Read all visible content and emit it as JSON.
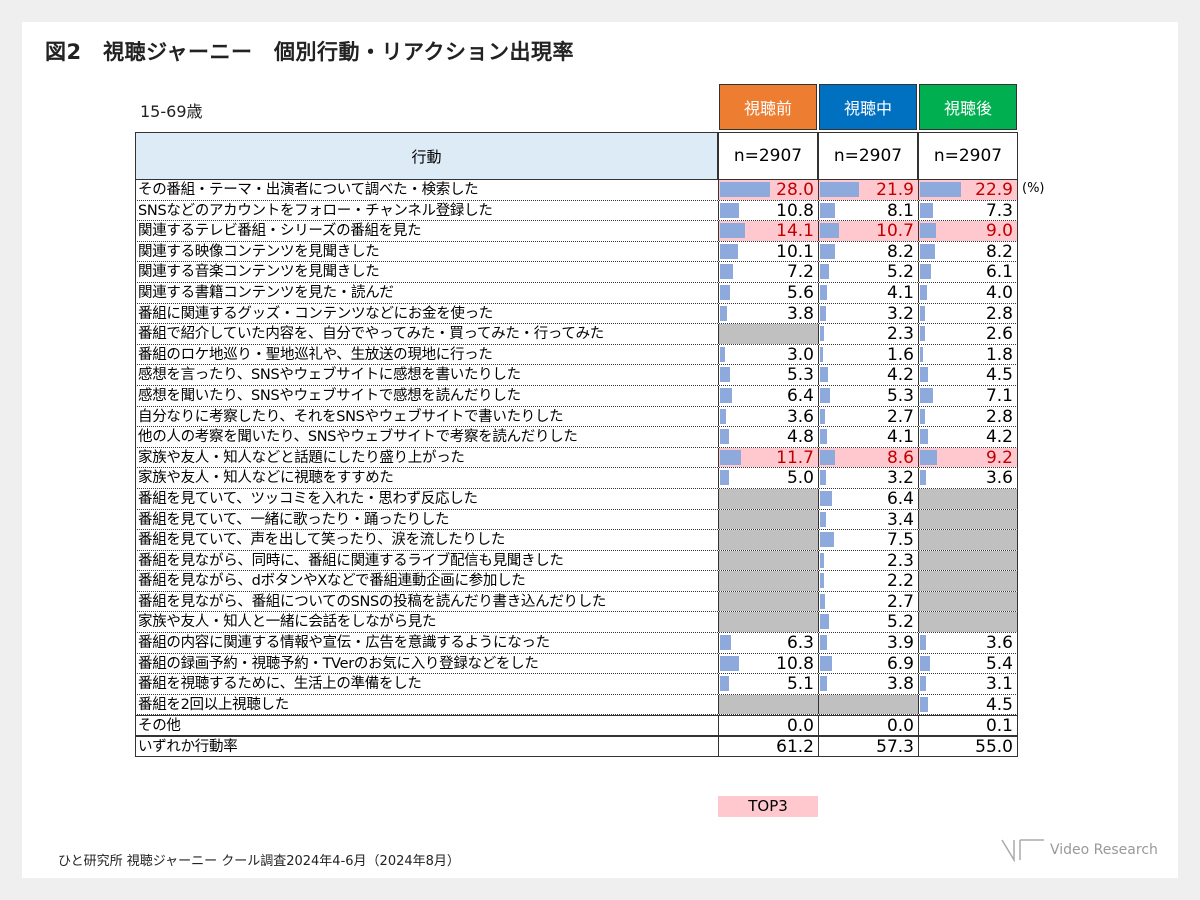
{
  "title": "図2　視聴ジャーニー　個別行動・リアクション出現率",
  "age_label": "15-69歳",
  "colors": {
    "before": "#ED7D31",
    "during": "#0070C0",
    "after": "#00B050",
    "bar": "#8EA9DB",
    "highlight": "#FFC7CE",
    "highlight_text": "#C00000",
    "na": "#C0C0C0"
  },
  "chart_data": {
    "type": "table",
    "row_header": "行動",
    "columns": [
      {
        "name": "視聴前",
        "n": "n=2907"
      },
      {
        "name": "視聴中",
        "n": "n=2907"
      },
      {
        "name": "視聴後",
        "n": "n=2907"
      }
    ],
    "unit": "(%)",
    "rows": [
      {
        "label": "その番組・テーマ・出演者について調べた・検索した",
        "values": [
          28.0,
          21.9,
          22.9
        ],
        "top3": true
      },
      {
        "label": "SNSなどのアカウントをフォロー・チャンネル登録した",
        "values": [
          10.8,
          8.1,
          7.3
        ]
      },
      {
        "label": "関連するテレビ番組・シリーズの番組を見た",
        "values": [
          14.1,
          10.7,
          9.0
        ],
        "top3": true
      },
      {
        "label": "関連する映像コンテンツを見聞きした",
        "values": [
          10.1,
          8.2,
          8.2
        ]
      },
      {
        "label": "関連する音楽コンテンツを見聞きした",
        "values": [
          7.2,
          5.2,
          6.1
        ]
      },
      {
        "label": "関連する書籍コンテンツを見た・読んだ",
        "values": [
          5.6,
          4.1,
          4.0
        ]
      },
      {
        "label": "番組に関連するグッズ・コンテンツなどにお金を使った",
        "values": [
          3.8,
          3.2,
          2.8
        ]
      },
      {
        "label": "番組で紹介していた内容を、自分でやってみた・買ってみた・行ってみた",
        "values": [
          null,
          2.3,
          2.6
        ]
      },
      {
        "label": "番組のロケ地巡り・聖地巡礼や、生放送の現地に行った",
        "values": [
          3.0,
          1.6,
          1.8
        ]
      },
      {
        "label": "感想を言ったり、SNSやウェブサイトに感想を書いたりした",
        "values": [
          5.3,
          4.2,
          4.5
        ]
      },
      {
        "label": "感想を聞いたり、SNSやウェブサイトで感想を読んだりした",
        "values": [
          6.4,
          5.3,
          7.1
        ]
      },
      {
        "label": "自分なりに考察したり、それをSNSやウェブサイトで書いたりした",
        "values": [
          3.6,
          2.7,
          2.8
        ]
      },
      {
        "label": "他の人の考察を聞いたり、SNSやウェブサイトで考察を読んだりした",
        "values": [
          4.8,
          4.1,
          4.2
        ]
      },
      {
        "label": "家族や友人・知人などと話題にしたり盛り上がった",
        "values": [
          11.7,
          8.6,
          9.2
        ],
        "top3": true
      },
      {
        "label": "家族や友人・知人などに視聴をすすめた",
        "values": [
          5.0,
          3.2,
          3.6
        ]
      },
      {
        "label": "番組を見ていて、ツッコミを入れた・思わず反応した",
        "values": [
          null,
          6.4,
          null
        ]
      },
      {
        "label": "番組を見ていて、一緒に歌ったり・踊ったりした",
        "values": [
          null,
          3.4,
          null
        ]
      },
      {
        "label": "番組を見ていて、声を出して笑ったり、涙を流したりした",
        "values": [
          null,
          7.5,
          null
        ]
      },
      {
        "label": "番組を見ながら、同時に、番組に関連するライブ配信も見聞きした",
        "values": [
          null,
          2.3,
          null
        ]
      },
      {
        "label": "番組を見ながら、dボタンやXなどで番組連動企画に参加した",
        "values": [
          null,
          2.2,
          null
        ]
      },
      {
        "label": "番組を見ながら、番組についてのSNSの投稿を読んだり書き込んだりした",
        "values": [
          null,
          2.7,
          null
        ]
      },
      {
        "label": "家族や友人・知人と一緒に会話をしながら見た",
        "values": [
          null,
          5.2,
          null
        ]
      },
      {
        "label": "番組の内容に関連する情報や宣伝・広告を意識するようになった",
        "values": [
          6.3,
          3.9,
          3.6
        ]
      },
      {
        "label": "番組の録画予約・視聴予約・TVerのお気に入り登録などをした",
        "values": [
          10.8,
          6.9,
          5.4
        ]
      },
      {
        "label": "番組を視聴するために、生活上の準備をした",
        "values": [
          5.1,
          3.8,
          3.1
        ]
      },
      {
        "label": "番組を2回以上視聴した",
        "values": [
          null,
          null,
          4.5
        ]
      }
    ],
    "summary_rows": [
      {
        "label": "その他",
        "values": [
          0.0,
          0.0,
          0.1
        ]
      },
      {
        "label": "いずれか行動率",
        "values": [
          61.2,
          57.3,
          55.0
        ]
      }
    ]
  },
  "legend_top3": "TOP3",
  "source": "ひと研究所 視聴ジャーニー クール調査2024年4-6月（2024年8月）",
  "logo_text": "Video Research"
}
